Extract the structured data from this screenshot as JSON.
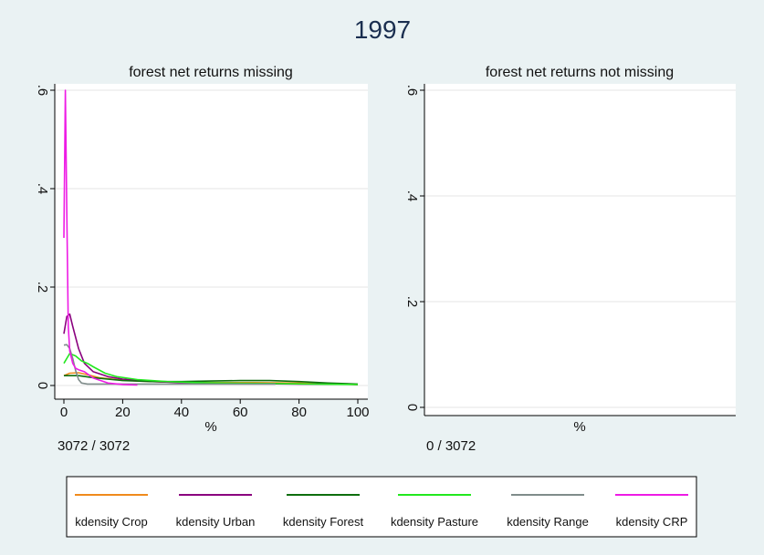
{
  "title": "1997",
  "chart_data": [
    {
      "type": "line",
      "title": "forest net returns missing",
      "xlabel": "%",
      "ylabel": "",
      "xlim": [
        0,
        100
      ],
      "ylim": [
        0,
        0.6
      ],
      "xticks": [
        "0",
        "20",
        "40",
        "60",
        "80",
        "100"
      ],
      "yticks": [
        "0",
        ".2",
        ".4",
        ".6"
      ],
      "grid": true,
      "note": "3072 / 3072",
      "series": [
        {
          "name": "kdensity Crop",
          "color": "#f08a1c",
          "x": [
            0,
            2,
            5,
            8,
            12,
            18,
            25,
            35,
            50,
            65,
            80,
            90,
            100
          ],
          "y": [
            0.02,
            0.025,
            0.026,
            0.022,
            0.016,
            0.012,
            0.009,
            0.007,
            0.006,
            0.006,
            0.005,
            0.003,
            0.002
          ]
        },
        {
          "name": "kdensity Urban",
          "color": "#8a007e",
          "x": [
            0,
            1,
            2,
            3,
            5,
            7,
            10,
            15,
            20,
            30,
            40,
            60,
            80,
            95,
            100
          ],
          "y": [
            0.105,
            0.14,
            0.145,
            0.12,
            0.075,
            0.045,
            0.028,
            0.018,
            0.013,
            0.008,
            0.006,
            0.004,
            0.003,
            0.003,
            0.002
          ]
        },
        {
          "name": "kdensity Forest",
          "color": "#0d6e0d",
          "x": [
            0,
            5,
            10,
            20,
            30,
            40,
            50,
            60,
            70,
            80,
            90,
            100
          ],
          "y": [
            0.02,
            0.02,
            0.016,
            0.01,
            0.008,
            0.008,
            0.009,
            0.01,
            0.01,
            0.008,
            0.005,
            0.003
          ]
        },
        {
          "name": "kdensity Pasture",
          "color": "#22e81e",
          "x": [
            0,
            2,
            4,
            6,
            8,
            10,
            14,
            18,
            25,
            35,
            45,
            55,
            70,
            85,
            100
          ],
          "y": [
            0.045,
            0.065,
            0.06,
            0.05,
            0.045,
            0.038,
            0.025,
            0.018,
            0.012,
            0.008,
            0.006,
            0.005,
            0.004,
            0.003,
            0.002
          ]
        },
        {
          "name": "kdensity Range",
          "color": "#7f8c8a",
          "x": [
            0,
            1,
            2,
            3,
            4,
            5,
            6,
            8,
            12,
            20,
            40,
            60,
            72
          ],
          "y": [
            0.082,
            0.083,
            0.075,
            0.055,
            0.03,
            0.012,
            0.005,
            0.003,
            0.003,
            0.003,
            0.003,
            0.003,
            0.003
          ]
        },
        {
          "name": "kdensity CRP",
          "color": "#ee1be5",
          "x": [
            0,
            0.5,
            1,
            1.5,
            2,
            3,
            4,
            5,
            7,
            10,
            15,
            20,
            25
          ],
          "y": [
            0.3,
            0.6,
            0.35,
            0.12,
            0.07,
            0.045,
            0.035,
            0.032,
            0.028,
            0.015,
            0.005,
            0.002,
            0.001
          ]
        }
      ]
    },
    {
      "type": "line",
      "title": "forest net returns not missing",
      "xlabel": "%",
      "ylabel": "",
      "ylim": [
        0,
        0.6
      ],
      "yticks": [
        "0",
        ".2",
        ".4",
        ".6"
      ],
      "grid": true,
      "note": "0 / 3072",
      "series": []
    }
  ],
  "legend": [
    {
      "label": "kdensity Crop",
      "color": "#f08a1c"
    },
    {
      "label": "kdensity Urban",
      "color": "#8a007e"
    },
    {
      "label": "kdensity Forest",
      "color": "#0d6e0d"
    },
    {
      "label": "kdensity Pasture",
      "color": "#22e81e"
    },
    {
      "label": "kdensity Range",
      "color": "#7f8c8a"
    },
    {
      "label": "kdensity CRP",
      "color": "#ee1be5"
    }
  ]
}
